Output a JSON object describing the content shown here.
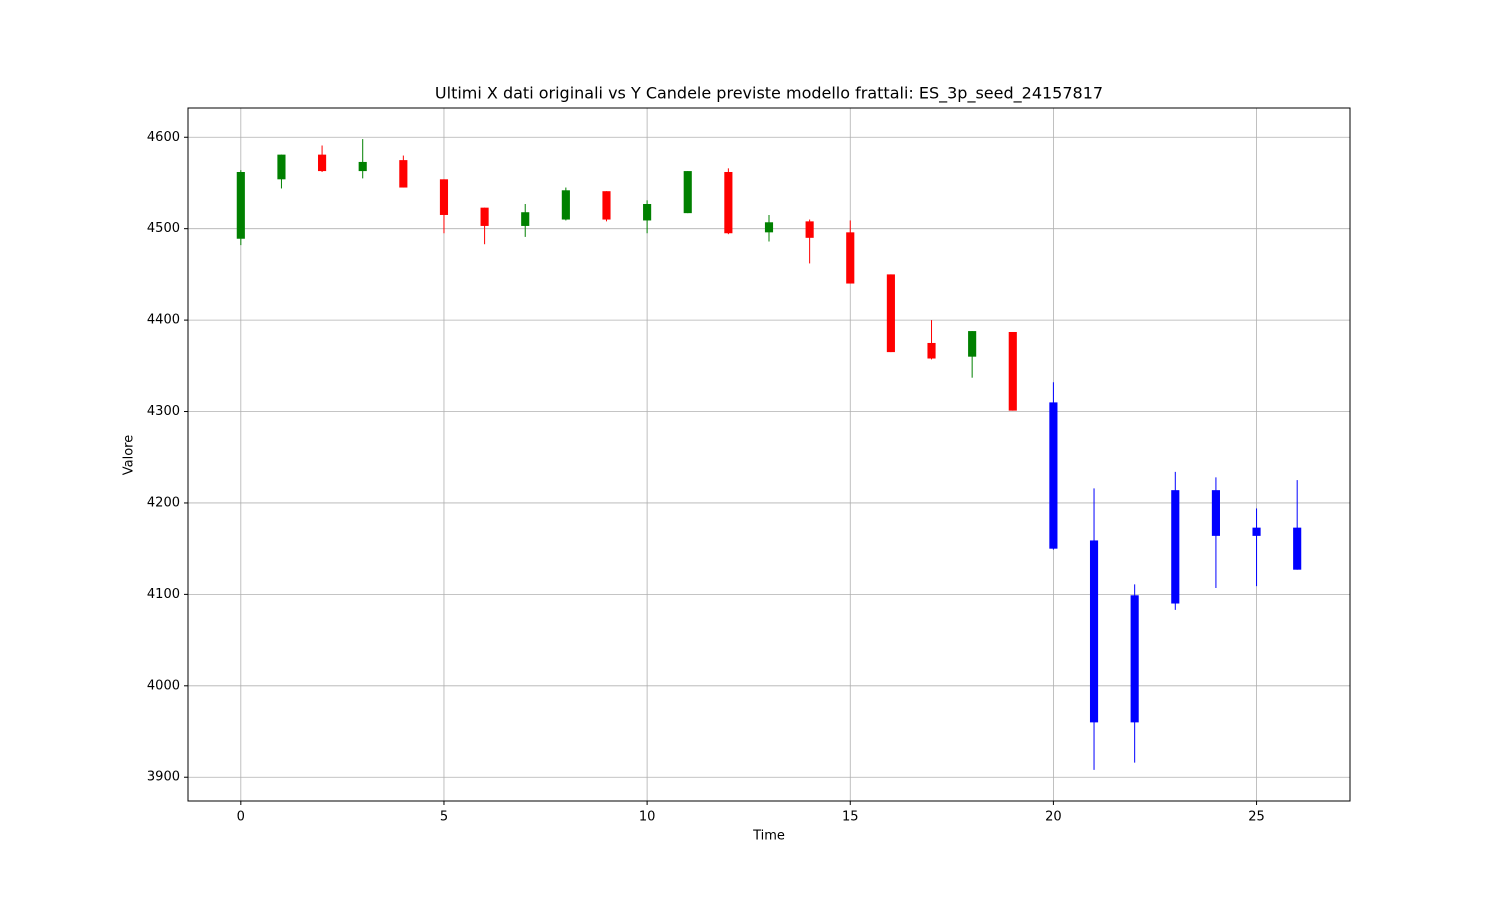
{
  "chart_data": {
    "type": "candlestick",
    "title": "Ultimi X dati originali vs Y Candele previste modello frattali: ES_3p_seed_24157817",
    "x_label": "Time",
    "y_label": "Valore",
    "xlim": [
      -1.3,
      27.3
    ],
    "xticks": [
      0,
      5,
      10,
      15,
      20,
      25
    ],
    "ylim": [
      3874,
      4632
    ],
    "yticks": [
      3900,
      4000,
      4100,
      4200,
      4300,
      4400,
      4500,
      4600
    ],
    "grid": true,
    "series": [
      {
        "up_color": "green",
        "down_color": "red",
        "x": [
          0,
          1,
          2,
          3,
          4,
          5,
          6,
          7,
          8,
          9,
          10,
          11,
          12,
          13,
          14,
          15,
          16,
          17,
          18,
          19
        ],
        "open": [
          4489,
          4554,
          4581,
          4563,
          4575,
          4554,
          4523,
          4503,
          4510,
          4541,
          4509,
          4517,
          4562,
          4496,
          4508,
          4496,
          4450,
          4375,
          4360,
          4387
        ],
        "high": [
          4564,
          4581,
          4591,
          4598,
          4580,
          4554,
          4523,
          4527,
          4545,
          4541,
          4531,
          4563,
          4566,
          4515,
          4510,
          4509,
          4450,
          4400,
          4388,
          4387
        ],
        "low": [
          4482,
          4544,
          4562,
          4555,
          4545,
          4495,
          4483,
          4491,
          4509,
          4508,
          4495,
          4517,
          4494,
          4486,
          4462,
          4440,
          4365,
          4357,
          4337,
          4301
        ],
        "close": [
          4562,
          4581,
          4563,
          4573,
          4545,
          4515,
          4503,
          4518,
          4542,
          4510,
          4527,
          4563,
          4495,
          4507,
          4490,
          4440,
          4365,
          4358,
          4388,
          4301
        ]
      },
      {
        "color": "blue",
        "x": [
          20,
          21,
          22,
          23,
          24,
          25,
          26
        ],
        "open": [
          4310,
          4159,
          4099,
          4090,
          4214,
          4164,
          4173
        ],
        "high": [
          4332,
          4216,
          4111,
          4234,
          4228,
          4194,
          4225
        ],
        "low": [
          4149,
          3908,
          3916,
          4083,
          4107,
          4109,
          4127
        ],
        "close": [
          4150,
          3960,
          3960,
          4214,
          4164,
          4173,
          4127
        ]
      }
    ]
  }
}
